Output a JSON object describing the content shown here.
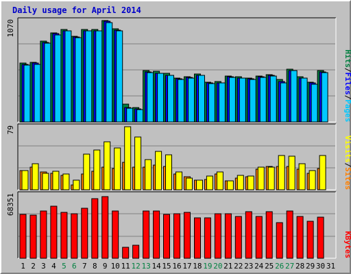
{
  "title": "Daily usage for April 2014",
  "colors": {
    "background": "#c0c0c0",
    "plot_area": "#c0c0c0",
    "title": "#0000c8",
    "hits": "#008040",
    "files": "#0000ff",
    "pages": "#00c8ff",
    "visits": "#ffff00",
    "sites": "#ff8000",
    "kbytes": "#ff0000",
    "weekend_label": "#008040",
    "weekday_label": "#000000"
  },
  "chart_data": [
    {
      "type": "bar",
      "panel": "top",
      "ymax_label": "1070",
      "ylim": [
        0,
        1070
      ],
      "grid": true,
      "legend": [
        "Pages",
        "Files",
        "Hits"
      ],
      "categories": [
        "1",
        "2",
        "3",
        "4",
        "5",
        "6",
        "7",
        "8",
        "9",
        "10",
        "11",
        "12",
        "13",
        "14",
        "15",
        "16",
        "17",
        "18",
        "19",
        "20",
        "21",
        "22",
        "23",
        "24",
        "25",
        "26",
        "27",
        "28",
        "29",
        "30",
        "31"
      ],
      "series": [
        {
          "name": "Hits",
          "values": [
            620,
            630,
            850,
            940,
            975,
            905,
            975,
            975,
            1070,
            980,
            185,
            155,
            545,
            535,
            510,
            460,
            480,
            505,
            420,
            425,
            485,
            475,
            460,
            485,
            500,
            445,
            555,
            475,
            420,
            545,
            0
          ]
        },
        {
          "name": "Files",
          "values": [
            610,
            620,
            840,
            930,
            965,
            895,
            965,
            965,
            1060,
            970,
            150,
            135,
            525,
            515,
            495,
            455,
            470,
            495,
            410,
            415,
            475,
            465,
            455,
            475,
            490,
            430,
            545,
            465,
            410,
            530,
            0
          ]
        },
        {
          "name": "Pages",
          "values": [
            600,
            610,
            830,
            920,
            960,
            890,
            960,
            960,
            1050,
            960,
            145,
            130,
            520,
            510,
            490,
            450,
            465,
            490,
            405,
            410,
            470,
            460,
            450,
            470,
            485,
            415,
            540,
            460,
            400,
            520,
            0
          ]
        }
      ]
    },
    {
      "type": "bar",
      "panel": "middle",
      "ymax_label": "79",
      "ylim": [
        0,
        79
      ],
      "grid": true,
      "legend": [
        "Sites",
        "Visits"
      ],
      "categories": [
        "1",
        "2",
        "3",
        "4",
        "5",
        "6",
        "7",
        "8",
        "9",
        "10",
        "11",
        "12",
        "13",
        "14",
        "15",
        "16",
        "17",
        "18",
        "19",
        "20",
        "21",
        "22",
        "23",
        "24",
        "25",
        "26",
        "27",
        "28",
        "29",
        "30",
        "31"
      ],
      "series": [
        {
          "name": "Sites",
          "values": [
            24,
            28,
            22,
            21,
            18,
            6,
            20,
            23,
            28,
            27,
            34,
            28,
            28,
            31,
            29,
            20,
            16,
            12,
            13,
            20,
            11,
            15,
            16,
            26,
            29,
            29,
            29,
            26,
            21,
            27,
            0
          ]
        },
        {
          "name": "Visits",
          "values": [
            24,
            33,
            21,
            23,
            20,
            12,
            45,
            50,
            60,
            52,
            79,
            66,
            38,
            48,
            44,
            22,
            15,
            12,
            17,
            22,
            11,
            18,
            17,
            28,
            28,
            43,
            42,
            33,
            24,
            43,
            0
          ]
        }
      ]
    },
    {
      "type": "bar",
      "panel": "bottom",
      "ymax_label": "68351",
      "ylim": [
        0,
        68351
      ],
      "grid": true,
      "legend": [
        "KBytes"
      ],
      "categories": [
        "1",
        "2",
        "3",
        "4",
        "5",
        "6",
        "7",
        "8",
        "9",
        "10",
        "11",
        "12",
        "13",
        "14",
        "15",
        "16",
        "17",
        "18",
        "19",
        "20",
        "21",
        "22",
        "23",
        "24",
        "25",
        "26",
        "27",
        "28",
        "29",
        "30",
        "31"
      ],
      "series": [
        {
          "name": "KBytes",
          "values": [
            47000,
            46000,
            51000,
            56000,
            49000,
            48000,
            54000,
            64000,
            66000,
            51000,
            12000,
            14000,
            51000,
            51000,
            47000,
            48000,
            49000,
            43000,
            43000,
            48000,
            48000,
            45000,
            50000,
            45000,
            50000,
            38000,
            51000,
            45000,
            40000,
            44000,
            0
          ]
        }
      ]
    }
  ],
  "weekend_days": [
    "5",
    "6",
    "12",
    "13",
    "19",
    "20",
    "26",
    "27"
  ]
}
